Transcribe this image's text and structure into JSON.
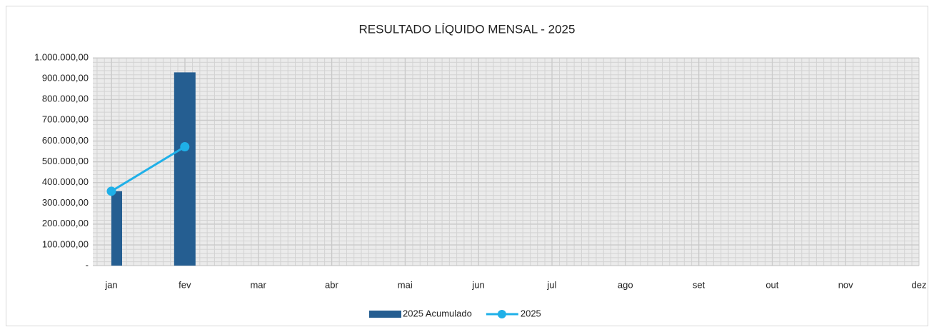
{
  "chart_data": {
    "type": "bar_line",
    "title": "RESULTADO LÍQUIDO MENSAL - 2025",
    "categories": [
      "jan",
      "fev",
      "mar",
      "abr",
      "mai",
      "jun",
      "jul",
      "ago",
      "set",
      "out",
      "nov",
      "dez"
    ],
    "series": [
      {
        "name": "2025 Acumulado",
        "type": "bar",
        "color": "#255e91",
        "values": [
          358000,
          930000,
          null,
          null,
          null,
          null,
          null,
          null,
          null,
          null,
          null,
          null
        ]
      },
      {
        "name": "2025",
        "type": "line",
        "color": "#1fb0e8",
        "values": [
          358000,
          572000,
          null,
          null,
          null,
          null,
          null,
          null,
          null,
          null,
          null,
          null
        ]
      }
    ],
    "ylim": [
      0,
      1000000
    ],
    "yticks": [
      {
        "value": 0,
        "label": "-"
      },
      {
        "value": 100000,
        "label": "100.000,00"
      },
      {
        "value": 200000,
        "label": "200.000,00"
      },
      {
        "value": 300000,
        "label": "300.000,00"
      },
      {
        "value": 400000,
        "label": "400.000,00"
      },
      {
        "value": 500000,
        "label": "500.000,00"
      },
      {
        "value": 600000,
        "label": "600.000,00"
      },
      {
        "value": 700000,
        "label": "700.000,00"
      },
      {
        "value": 800000,
        "label": "800.000,00"
      },
      {
        "value": 900000,
        "label": "900.000,00"
      },
      {
        "value": 1000000,
        "label": "1.000.000,00"
      }
    ],
    "grid": true,
    "legend": "bottom"
  }
}
